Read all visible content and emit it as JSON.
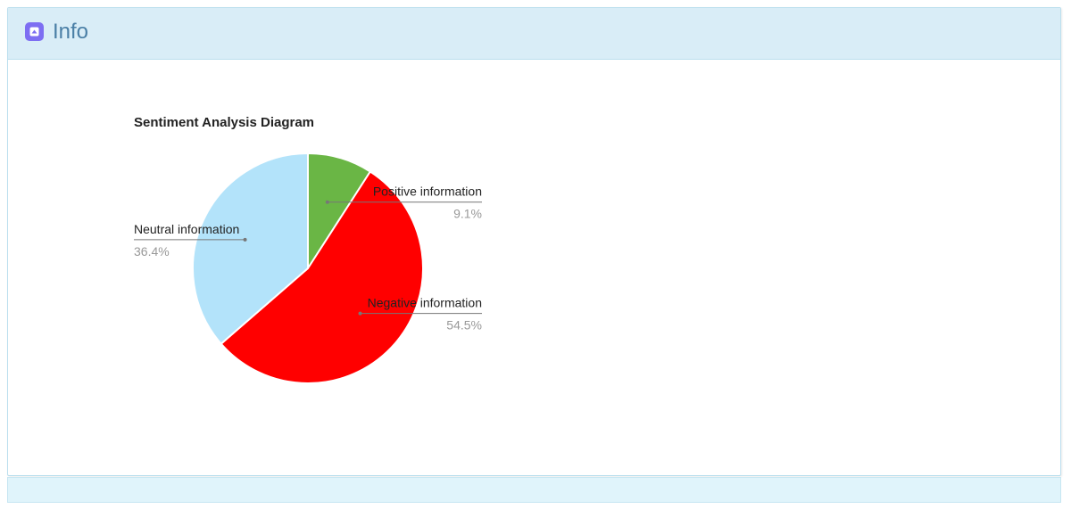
{
  "header": {
    "title": "Info",
    "icon": "caret-up-square-icon",
    "icon_color": "#7d6ef2"
  },
  "chart_data": {
    "type": "pie",
    "title": "Sentiment Analysis Diagram",
    "start_angle_deg": 0,
    "direction": "clockwise",
    "slices": [
      {
        "label": "Positive information",
        "value": 9.1,
        "display": "9.1%",
        "color": "#6ab645",
        "label_side": "right"
      },
      {
        "label": "Negative information",
        "value": 54.5,
        "display": "54.5%",
        "color": "#ff0000",
        "label_side": "right"
      },
      {
        "label": "Neutral information",
        "value": 36.4,
        "display": "36.4%",
        "color": "#b3e3fa",
        "label_side": "left"
      }
    ]
  }
}
